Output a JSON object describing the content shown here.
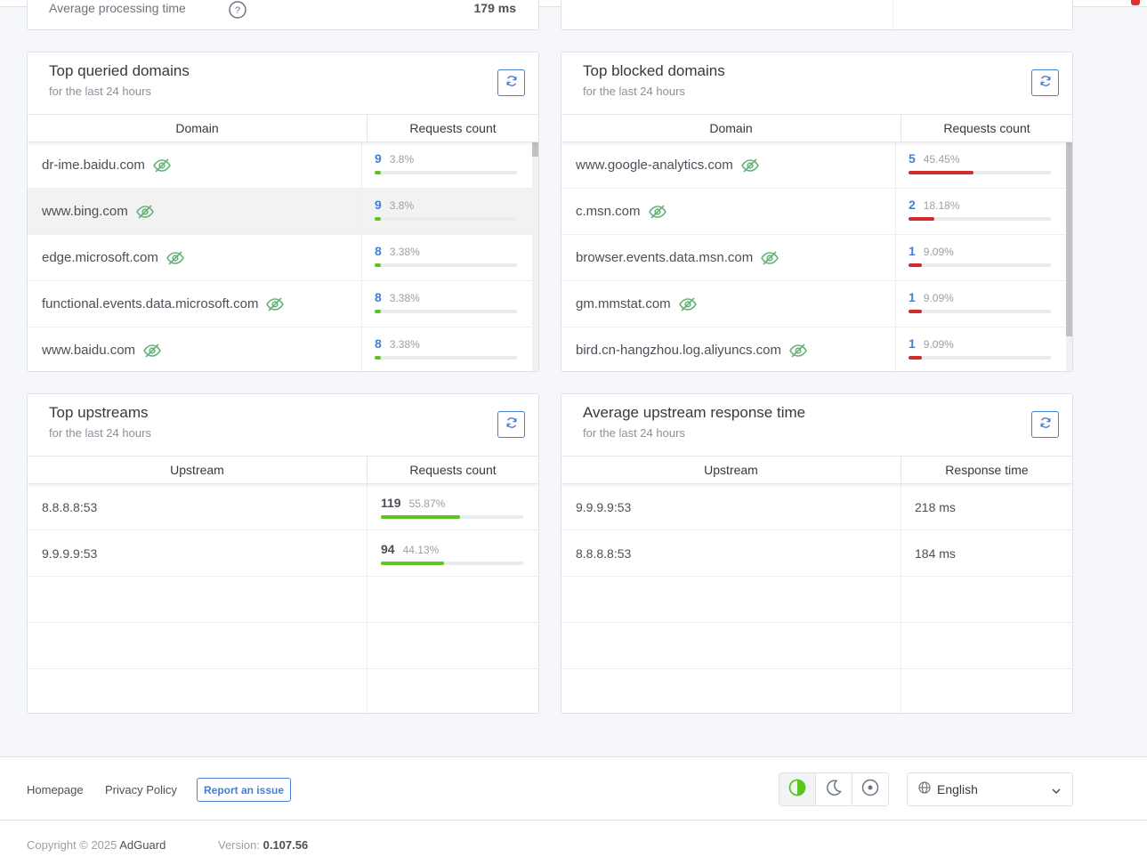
{
  "stats_stub": {
    "label": "Average processing time",
    "value": "179 ms"
  },
  "top_queried": {
    "title": "Top queried domains",
    "subtitle": "for the last 24 hours",
    "col_domain": "Domain",
    "col_count": "Requests count",
    "rows": [
      {
        "domain": "dr-ime.baidu.com",
        "count": "9",
        "pct": "3.8%",
        "fill": 0.038
      },
      {
        "domain": "www.bing.com",
        "count": "9",
        "pct": "3.8%",
        "fill": 0.038
      },
      {
        "domain": "edge.microsoft.com",
        "count": "8",
        "pct": "3.38%",
        "fill": 0.0338
      },
      {
        "domain": "functional.events.data.microsoft.com",
        "count": "8",
        "pct": "3.38%",
        "fill": 0.0338
      },
      {
        "domain": "www.baidu.com",
        "count": "8",
        "pct": "3.38%",
        "fill": 0.0338
      }
    ]
  },
  "top_blocked": {
    "title": "Top blocked domains",
    "subtitle": "for the last 24 hours",
    "col_domain": "Domain",
    "col_count": "Requests count",
    "rows": [
      {
        "domain": "www.google-analytics.com",
        "count": "5",
        "pct": "45.45%",
        "fill": 0.4545
      },
      {
        "domain": "c.msn.com",
        "count": "2",
        "pct": "18.18%",
        "fill": 0.1818
      },
      {
        "domain": "browser.events.data.msn.com",
        "count": "1",
        "pct": "9.09%",
        "fill": 0.0909
      },
      {
        "domain": "gm.mmstat.com",
        "count": "1",
        "pct": "9.09%",
        "fill": 0.0909
      },
      {
        "domain": "bird.cn-hangzhou.log.aliyuncs.com",
        "count": "1",
        "pct": "9.09%",
        "fill": 0.0909
      }
    ]
  },
  "top_upstreams": {
    "title": "Top upstreams",
    "subtitle": "for the last 24 hours",
    "col_upstream": "Upstream",
    "col_count": "Requests count",
    "rows": [
      {
        "upstream": "8.8.8.8:53",
        "count": "119",
        "pct": "55.87%",
        "fill": 0.5587
      },
      {
        "upstream": "9.9.9.9:53",
        "count": "94",
        "pct": "44.13%",
        "fill": 0.4413
      }
    ]
  },
  "avg_upstream": {
    "title": "Average upstream response time",
    "subtitle": "for the last 24 hours",
    "col_upstream": "Upstream",
    "col_time": "Response time",
    "rows": [
      {
        "upstream": "9.9.9.9:53",
        "time": "218 ms"
      },
      {
        "upstream": "8.8.8.8:53",
        "time": "184 ms"
      }
    ]
  },
  "footer": {
    "homepage": "Homepage",
    "privacy": "Privacy Policy",
    "report": "Report an issue",
    "language": "English",
    "copyright_prefix": "Copyright © 2025",
    "brand": "AdGuard",
    "version_label": "Version:",
    "version_value": "0.107.56"
  },
  "colors": {
    "accent": "#467fcf",
    "green": "#67b279",
    "bar_green": "#5ec51f",
    "bar_red": "#d12c2c"
  },
  "icons": {
    "refresh": "refresh-icon",
    "unblock": "eye-slash-icon",
    "theme_auto": "contrast-icon",
    "theme_dark": "moon-icon",
    "theme_light": "sun-icon",
    "language": "globe-icon"
  }
}
